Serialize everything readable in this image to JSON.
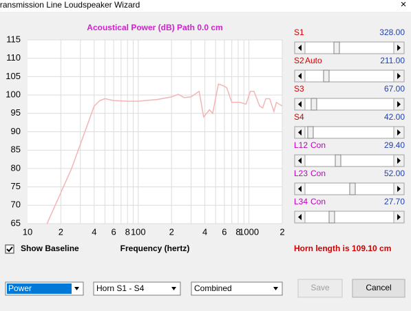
{
  "window": {
    "title": "Transmission Line Loudspeaker Wizard",
    "close": "×"
  },
  "chart_data": {
    "type": "line",
    "title": "Acoustical Power (dB)   Path 0.0 cm",
    "x_label": "Frequency (hertz)",
    "xlog": true,
    "xlim": [
      10,
      2000
    ],
    "xticks": [
      10,
      {
        "value": 20,
        "label": "2"
      },
      {
        "value": 40,
        "label": "4"
      },
      {
        "value": 60,
        "label": "6"
      },
      {
        "value": 80,
        "label": "8"
      },
      100,
      {
        "value": 200,
        "label": "2"
      },
      {
        "value": 400,
        "label": "4"
      },
      {
        "value": 600,
        "label": "6"
      },
      {
        "value": 800,
        "label": "8"
      },
      1000,
      {
        "value": 2000,
        "label": "2"
      }
    ],
    "xgrid": [
      20,
      30,
      40,
      50,
      60,
      70,
      80,
      90,
      100,
      200,
      300,
      400,
      500,
      600,
      700,
      800,
      900,
      1000,
      2000
    ],
    "ylim": [
      65,
      115
    ],
    "yticks": [
      65,
      70,
      75,
      80,
      85,
      90,
      95,
      100,
      105,
      110,
      115
    ],
    "grid": true,
    "series": [
      {
        "color": "#f4b4b4",
        "x": [
          15,
          25,
          40,
          45,
          50,
          60,
          80,
          100,
          150,
          200,
          230,
          260,
          300,
          355,
          390,
          440,
          470,
          530,
          590,
          630,
          700,
          830,
          940,
          1030,
          1110,
          1250,
          1330,
          1420,
          1540,
          1680,
          1770,
          2000
        ],
        "values": [
          65,
          80,
          97,
          98.5,
          99,
          98.5,
          98.3,
          98.3,
          98.8,
          99.5,
          100.2,
          99.3,
          99.5,
          101,
          94,
          96,
          95,
          103,
          102.5,
          102,
          98,
          98,
          97.5,
          101,
          101,
          97,
          96.5,
          99,
          99,
          95.5,
          98,
          97
        ]
      }
    ]
  },
  "sliders": [
    {
      "label": "S1",
      "value": "328.00"
    },
    {
      "label": "S2",
      "mode": "Auto",
      "value": "211.00"
    },
    {
      "label": "S3",
      "value": "67.00"
    },
    {
      "label": "S4",
      "value": "42.00"
    },
    {
      "label": "L12",
      "mode": "Con",
      "value": "29.40"
    },
    {
      "label": "L23",
      "mode": "Con",
      "value": "52.00"
    },
    {
      "label": "L34",
      "mode": "Con",
      "value": "27.70"
    }
  ],
  "checkbox": {
    "label": "Show Baseline"
  },
  "horn_length": "Horn length is 109.10 cm",
  "dropdowns": [
    "Power",
    "Horn S1 - S4",
    "Combined"
  ],
  "buttons": [
    "Save",
    "Cancel"
  ]
}
